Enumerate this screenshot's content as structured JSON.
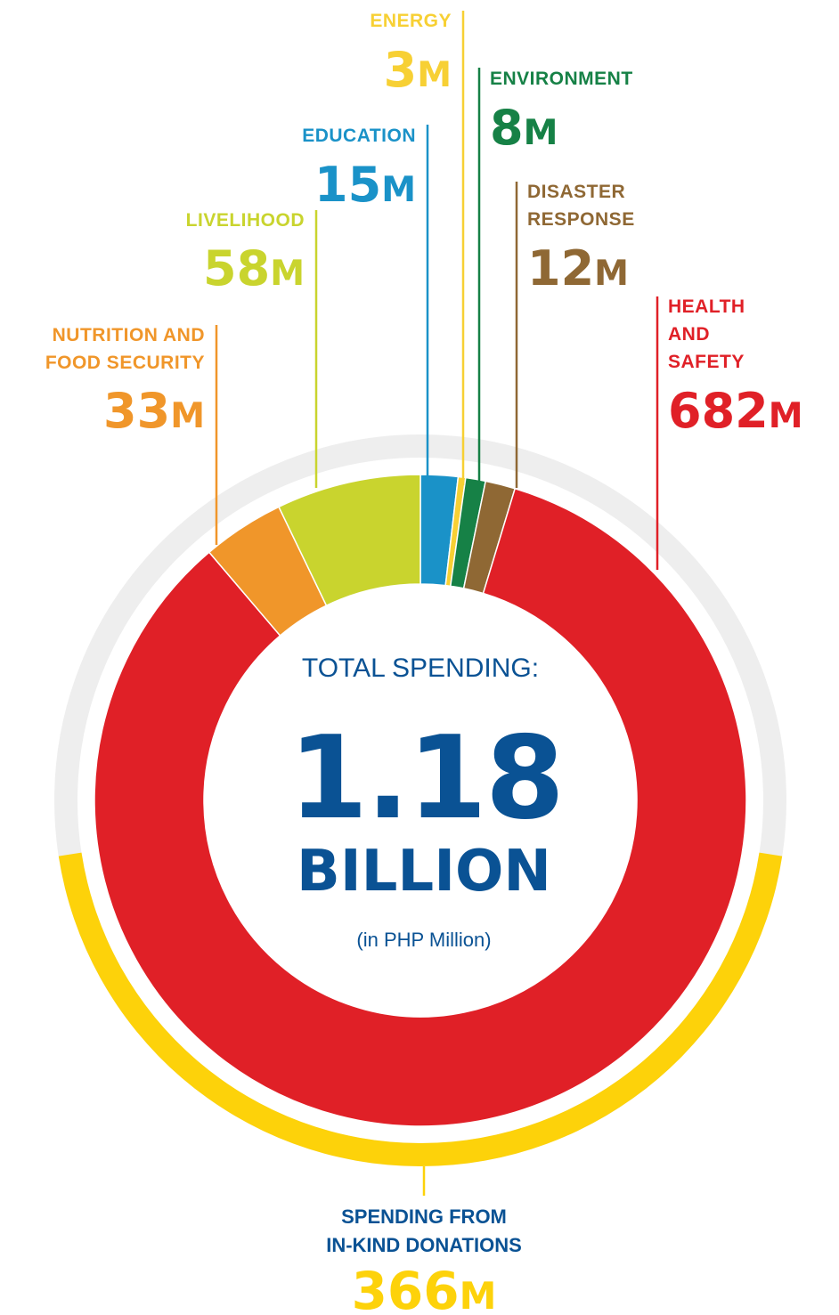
{
  "chart_data": {
    "type": "pie",
    "center": {
      "caption": "TOTAL SPENDING:",
      "number": "1.18",
      "unit": "BILLION",
      "note": "(in PHP Million)"
    },
    "unit_suffix": "M",
    "categories": [
      {
        "key": "education",
        "label_lines": [
          "EDUCATION"
        ],
        "value": 15,
        "display_value": "15",
        "color": "#1a92c8"
      },
      {
        "key": "energy",
        "label_lines": [
          "ENERGY"
        ],
        "value": 3,
        "display_value": "3",
        "color": "#f7d034"
      },
      {
        "key": "environment",
        "label_lines": [
          "ENVIRONMENT"
        ],
        "value": 8,
        "display_value": "8",
        "color": "#168146"
      },
      {
        "key": "disaster-response",
        "label_lines": [
          "DISASTER",
          "RESPONSE"
        ],
        "value": 12,
        "display_value": "12",
        "color": "#8f6834"
      },
      {
        "key": "health-and-safety",
        "label_lines": [
          "HEALTH",
          "AND",
          "SAFETY"
        ],
        "value": 682,
        "display_value": "682",
        "color": "#e02027"
      },
      {
        "key": "nutrition-and-food-security",
        "label_lines": [
          "NUTRITION AND",
          "FOOD SECURITY"
        ],
        "value": 33,
        "display_value": "33",
        "color": "#f0962a"
      },
      {
        "key": "livelihood",
        "label_lines": [
          "LIVELIHOOD"
        ],
        "value": 58,
        "display_value": "58",
        "color": "#c9d42e"
      }
    ],
    "in_kind": {
      "label_lines": [
        "SPENDING FROM",
        "IN-KIND DONATIONS"
      ],
      "value": 366,
      "display_value": "366",
      "color": "#fdd20a",
      "track_color": "#eeeeee"
    }
  },
  "colors": {
    "center_text": "#0a5294"
  }
}
